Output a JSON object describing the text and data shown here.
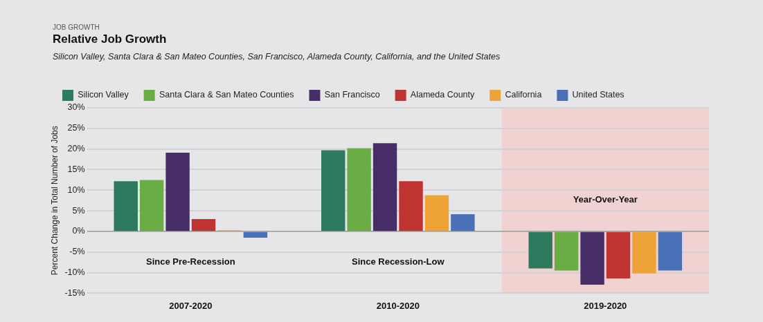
{
  "chart_data": {
    "type": "bar",
    "title": "Relative Job Growth",
    "subtitle": "Silicon Valley, Santa Clara & San Mateo Counties, San Francisco, Alameda County, California, and the United States",
    "ylabel": "Percent Change in Total Number of Jobs",
    "categories": [
      "2007-2020",
      "2010-2020",
      "2019-2020"
    ],
    "series": [
      {
        "name": "Silicon Valley",
        "color": "#2e7a5e",
        "values": [
          12.2,
          19.7,
          -9.0
        ]
      },
      {
        "name": "Santa Clara & San Mateo Counties",
        "color": "#6aad45",
        "values": [
          12.5,
          20.2,
          -9.5
        ]
      },
      {
        "name": "San Francisco",
        "color": "#472e68",
        "values": [
          19.1,
          21.4,
          -12.9
        ]
      },
      {
        "name": "Alameda County",
        "color": "#bf3431",
        "values": [
          3.0,
          12.2,
          -11.4
        ]
      },
      {
        "name": "California",
        "color": "#eda336",
        "values": [
          0.3,
          8.8,
          -10.2
        ]
      },
      {
        "name": "United States",
        "color": "#4a70b8",
        "values": [
          -1.5,
          4.2,
          -9.5
        ]
      }
    ],
    "ylim": [
      -15,
      30
    ],
    "yticks": [
      {
        "value": -15,
        "label": "-15%"
      },
      {
        "value": -10,
        "label": "-10%"
      },
      {
        "value": -5,
        "label": "-5%"
      },
      {
        "value": 0,
        "label": "0%"
      },
      {
        "value": 5,
        "label": "5%"
      },
      {
        "value": 10,
        "label": "10%"
      },
      {
        "value": 15,
        "label": "15%"
      },
      {
        "value": 20,
        "label": "20%"
      },
      {
        "value": 25,
        "label": "25%"
      },
      {
        "value": 30,
        "label": "30%"
      }
    ],
    "bands": [
      {
        "axis": "x",
        "from": "2019-2020",
        "to": "2019-2020",
        "color": "#f0d3d0"
      }
    ],
    "annotations": [
      "JOB GROWTH",
      "Since Pre-Recession",
      "Since Recession-Low",
      "Year-Over-Year"
    ],
    "grid": "y",
    "legend": "top"
  }
}
